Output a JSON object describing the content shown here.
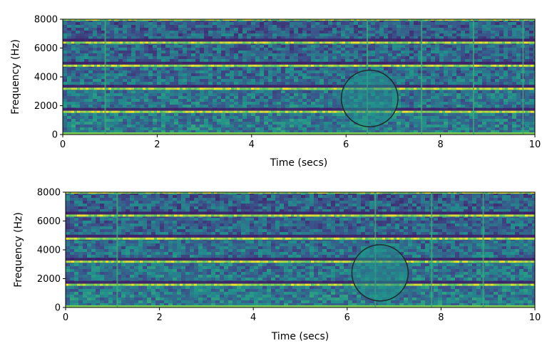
{
  "chart_data": [
    {
      "type": "heatmap",
      "xlabel": "Time (secs)",
      "ylabel": "Frequency (Hz)",
      "xlim": [
        0,
        10
      ],
      "ylim": [
        0,
        8000
      ],
      "xticks": [
        0,
        2,
        4,
        6,
        8,
        10
      ],
      "yticks": [
        0,
        2000,
        4000,
        6000,
        8000
      ],
      "colormap": [
        "#440154",
        "#3b528b",
        "#21918c",
        "#5ec962",
        "#fde725"
      ],
      "harmonic_bands_hz": [
        1600,
        3200,
        4800,
        6400,
        8000
      ],
      "onsets_secs": [
        0.9,
        6.45,
        7.6,
        8.7,
        9.75
      ],
      "highlight": {
        "center_secs": 6.5,
        "center_hz": 2500,
        "radius_secs": 0.6
      }
    },
    {
      "type": "heatmap",
      "xlabel": "Time (secs)",
      "ylabel": "Frequency (Hz)",
      "xlim": [
        0,
        10
      ],
      "ylim": [
        0,
        8000
      ],
      "xticks": [
        0,
        2,
        4,
        6,
        8,
        10
      ],
      "yticks": [
        0,
        2000,
        4000,
        6000,
        8000
      ],
      "colormap": [
        "#440154",
        "#3b528b",
        "#21918c",
        "#5ec962",
        "#fde725"
      ],
      "harmonic_bands_hz": [
        1600,
        3200,
        4800,
        6400,
        8000
      ],
      "onsets_secs": [
        1.1,
        6.6,
        7.8,
        8.9
      ],
      "highlight": {
        "center_secs": 6.7,
        "center_hz": 2400,
        "radius_secs": 0.6
      }
    }
  ]
}
